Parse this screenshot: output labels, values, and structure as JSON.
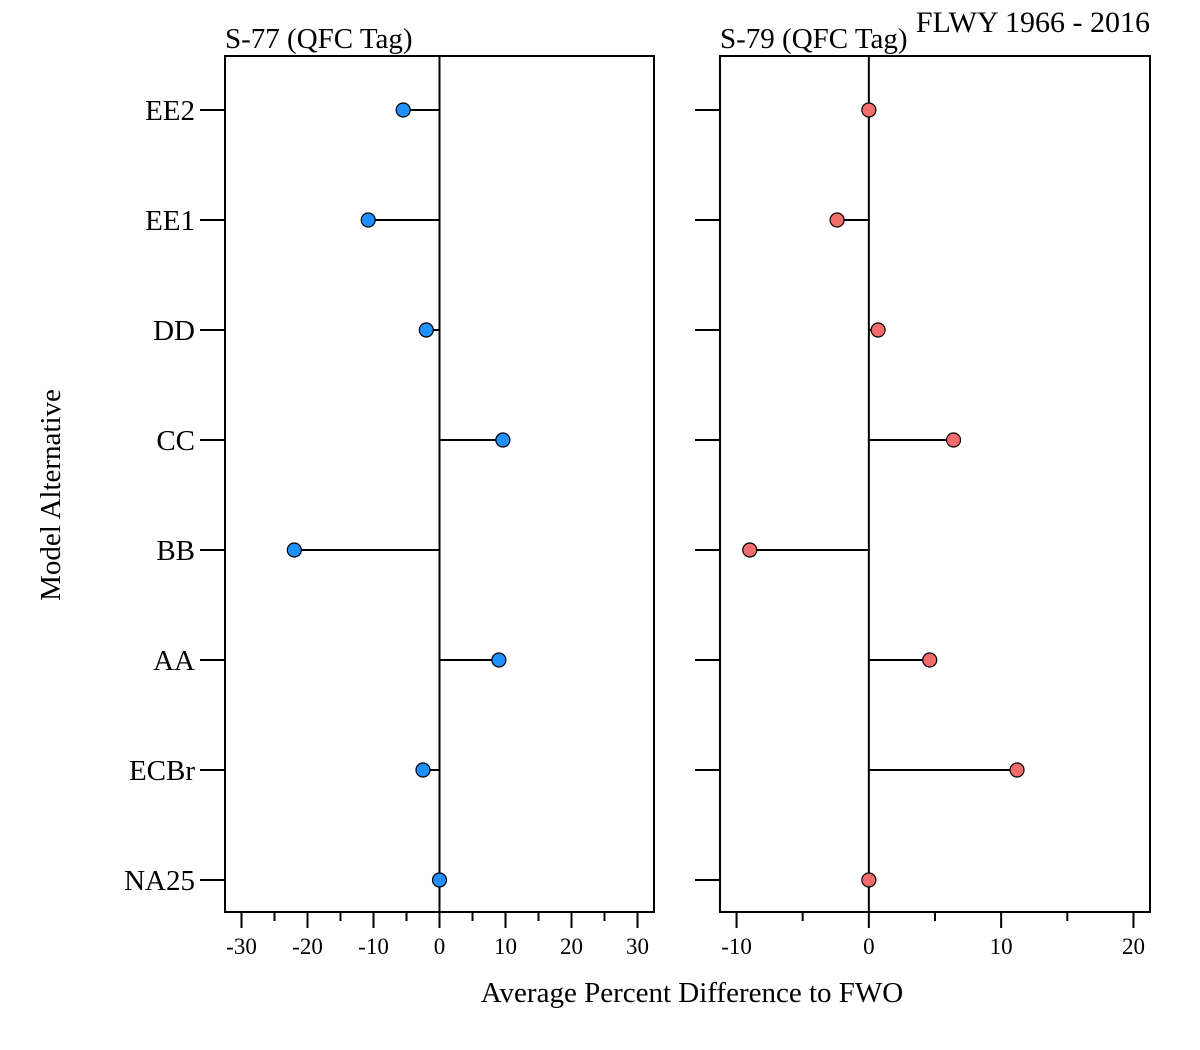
{
  "chart_data": {
    "type": "lollipop",
    "title": "FLWY 1966 - 2016",
    "xlabel": "Average Percent Difference to FWO",
    "ylabel": "Model Alternative",
    "categories": [
      "NA25",
      "ECBr",
      "AA",
      "BB",
      "CC",
      "DD",
      "EE1",
      "EE2"
    ],
    "panels": [
      {
        "title": "S-77 (QFC Tag)",
        "color": "#1e90ff",
        "xlim": [
          -32.5,
          32.5
        ],
        "xticks": [
          -30,
          -20,
          -10,
          0,
          10,
          20,
          30
        ],
        "minor_ticks": [
          -25,
          -15,
          -5,
          5,
          15,
          25
        ],
        "values": [
          0,
          -2.5,
          9,
          -22,
          9.6,
          -2,
          -10.8,
          -5.5
        ]
      },
      {
        "title": "S-79 (QFC Tag)",
        "color": "#f46d6d",
        "xlim": [
          -11.25,
          21.25
        ],
        "xticks": [
          -10,
          0,
          10,
          20
        ],
        "minor_ticks": [
          -5,
          5,
          15
        ],
        "values": [
          0,
          11.2,
          4.6,
          -9,
          6.4,
          0.7,
          -2.4,
          0
        ]
      }
    ]
  }
}
